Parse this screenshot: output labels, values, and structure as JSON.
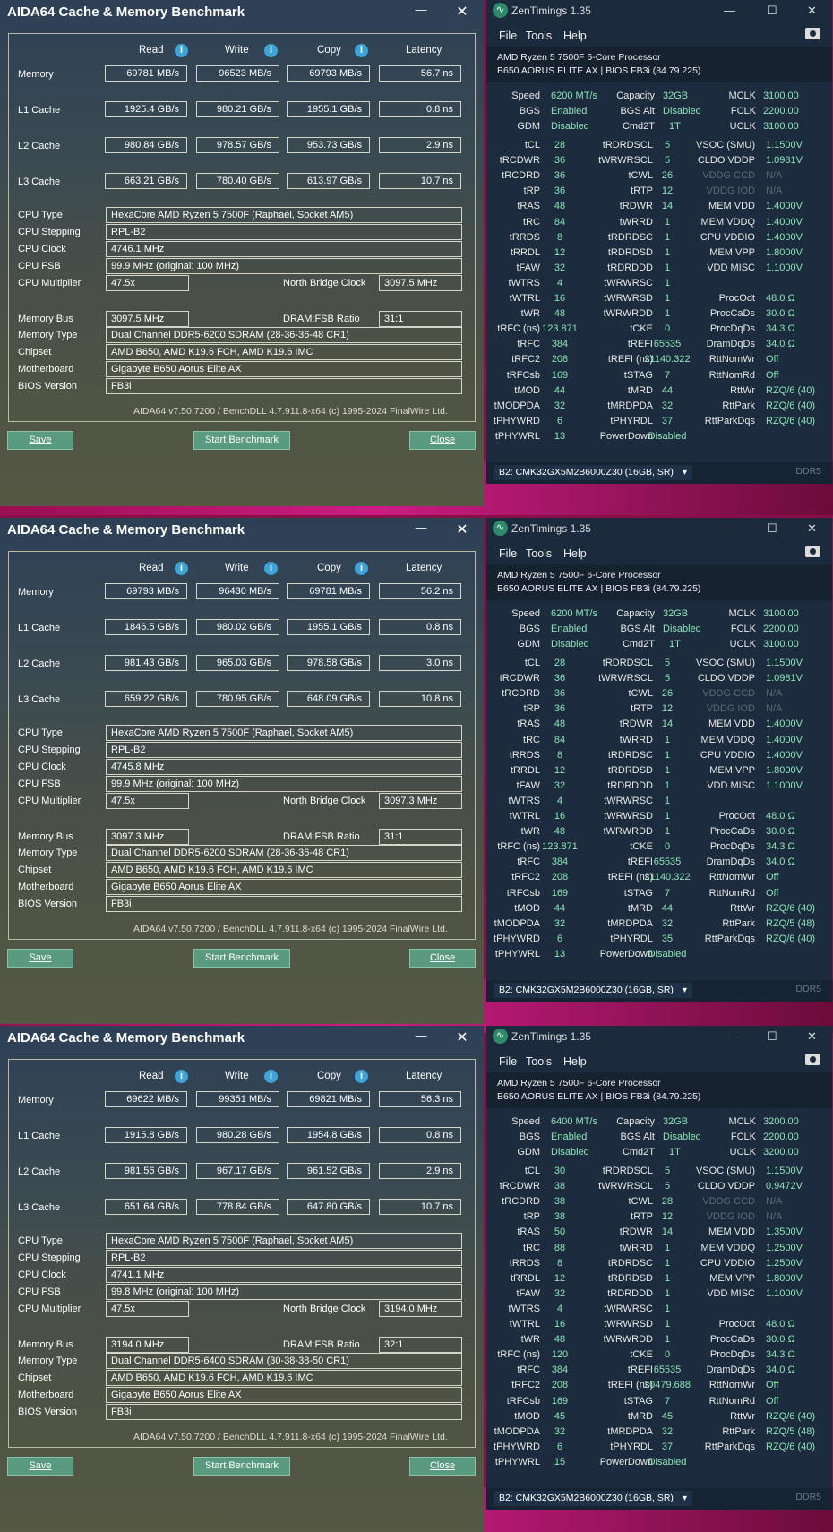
{
  "aida_title": "AIDA64 Cache & Memory Benchmark",
  "headers": {
    "read": "Read",
    "write": "Write",
    "copy": "Copy",
    "latency": "Latency"
  },
  "row_labels": {
    "memory": "Memory",
    "l1": "L1 Cache",
    "l2": "L2 Cache",
    "l3": "L3 Cache",
    "cpu_type": "CPU Type",
    "cpu_stepping": "CPU Stepping",
    "cpu_clock": "CPU Clock",
    "cpu_fsb": "CPU FSB",
    "cpu_multiplier": "CPU Multiplier",
    "nb_clock": "North Bridge Clock",
    "memory_bus": "Memory Bus",
    "dram_fsb": "DRAM:FSB Ratio",
    "memory_type": "Memory Type",
    "chipset": "Chipset",
    "motherboard": "Motherboard",
    "bios_version": "BIOS Version"
  },
  "footer": "AIDA64 v7.50.7200 / BenchDLL 4.7.911.8-x64  (c) 1995-2024 FinalWire Ltd.",
  "buttons": {
    "save": "Save",
    "start": "Start Benchmark",
    "close": "Close"
  },
  "zen_title": "ZenTimings 1.35",
  "zen_menu": {
    "file": "File",
    "tools": "Tools",
    "help": "Help"
  },
  "zen_cpu": "AMD Ryzen 5 7500F 6-Core Processor",
  "zen_board": "B650 AORUS ELITE AX | BIOS FB3i (84.79.225)",
  "zen_labels": {
    "speed": "Speed",
    "capacity": "Capacity",
    "mclk": "MCLK",
    "bgs": "BGS",
    "bgs_alt": "BGS Alt",
    "fclk": "FCLK",
    "gdm": "GDM",
    "cmd2t": "Cmd2T",
    "uclk": "UCLK",
    "c1": [
      "tCL",
      "tRCDWR",
      "tRCDRD",
      "tRP",
      "tRAS",
      "tRC",
      "tRRDS",
      "tRRDL",
      "tFAW",
      "tWTRS",
      "tWTRL",
      "tWR",
      "tRFC (ns)",
      "tRFC",
      "tRFC2",
      "tRFCsb",
      "tMOD",
      "tMODPDA",
      "tPHYWRD",
      "tPHYWRL"
    ],
    "c2": [
      "tRDRDSCL",
      "tWRWRSCL",
      "tCWL",
      "tRTP",
      "tRDWR",
      "tWRRD",
      "tRDRDSC",
      "tRDRDSD",
      "tRDRDDD",
      "tWRWRSC",
      "tWRWRSD",
      "tWRWRDD",
      "tCKE",
      "tREFI",
      "tREFI (ns)",
      "tSTAG",
      "tMRD",
      "tMRDPDA",
      "tPHYRDL",
      "PowerDown"
    ],
    "c3": [
      "VSOC (SMU)",
      "CLDO VDDP",
      "VDDG CCD",
      "VDDG IOD",
      "MEM VDD",
      "MEM VDDQ",
      "CPU VDDIO",
      "MEM VPP",
      "VDD MISC",
      "",
      "ProcOdt",
      "ProcCaDs",
      "ProcDqDs",
      "DramDqDs",
      "RttNomWr",
      "RttNomRd",
      "RttWr",
      "RttPark",
      "RttParkDqs"
    ]
  },
  "zen_dimm": "B2: CMK32GX5M2B6000Z30 (16GB, SR)",
  "zen_ddr": "DDR5",
  "instances": [
    {
      "memory": {
        "read": "69781 MB/s",
        "write": "96523 MB/s",
        "copy": "69793 MB/s",
        "latency": "56.7 ns"
      },
      "l1": {
        "read": "1925.4 GB/s",
        "write": "980.21 GB/s",
        "copy": "1955.1 GB/s",
        "latency": "0.8 ns"
      },
      "l2": {
        "read": "980.84 GB/s",
        "write": "978.57 GB/s",
        "copy": "953.73 GB/s",
        "latency": "2.9 ns"
      },
      "l3": {
        "read": "663.21 GB/s",
        "write": "780.40 GB/s",
        "copy": "613.97 GB/s",
        "latency": "10.7 ns"
      },
      "cpu_type": "HexaCore AMD Ryzen 5 7500F  (Raphael, Socket AM5)",
      "cpu_stepping": "RPL-B2",
      "cpu_clock": "4746.1 MHz",
      "cpu_fsb": "99.9 MHz  (original: 100 MHz)",
      "cpu_multiplier": "47.5x",
      "nb_clock": "3097.5 MHz",
      "memory_bus": "3097.5 MHz",
      "dram_fsb": "31:1",
      "memory_type": "Dual Channel DDR5-6200 SDRAM  (28-36-36-48 CR1)",
      "chipset": "AMD B650, AMD K19.6 FCH, AMD K19.6 IMC",
      "motherboard": "Gigabyte B650 Aorus Elite AX",
      "bios": "FB3i",
      "zen": {
        "speed": "6200 MT/s",
        "capacity": "32GB",
        "mclk": "3100.00",
        "bgs": "Enabled",
        "bgs_alt": "Disabled",
        "fclk": "2200.00",
        "gdm": "Disabled",
        "cmd2t": "1T",
        "uclk": "3100.00",
        "v1": [
          "28",
          "36",
          "36",
          "36",
          "48",
          "84",
          "8",
          "12",
          "32",
          "4",
          "16",
          "48",
          "123.871",
          "384",
          "208",
          "169",
          "44",
          "32",
          "6",
          "13"
        ],
        "v2": [
          "5",
          "5",
          "26",
          "12",
          "14",
          "1",
          "1",
          "1",
          "1",
          "1",
          "1",
          "1",
          "0",
          "65535",
          "21140.322",
          "7",
          "44",
          "32",
          "37",
          "Disabled"
        ],
        "v3": [
          "1.1500V",
          "1.0981V",
          "N/A",
          "N/A",
          "1.4000V",
          "1.4000V",
          "1.4000V",
          "1.8000V",
          "1.1000V",
          "",
          "48.0 Ω",
          "30.0 Ω",
          "34.3 Ω",
          "34.0 Ω",
          "Off",
          "Off",
          "RZQ/6 (40)",
          "RZQ/6 (40)",
          "RZQ/6 (40)"
        ]
      }
    },
    {
      "memory": {
        "read": "69793 MB/s",
        "write": "96430 MB/s",
        "copy": "69781 MB/s",
        "latency": "56.2 ns"
      },
      "l1": {
        "read": "1846.5 GB/s",
        "write": "980.02 GB/s",
        "copy": "1955.1 GB/s",
        "latency": "0.8 ns"
      },
      "l2": {
        "read": "981.43 GB/s",
        "write": "965.03 GB/s",
        "copy": "978.58 GB/s",
        "latency": "3.0 ns"
      },
      "l3": {
        "read": "659.22 GB/s",
        "write": "780.95 GB/s",
        "copy": "648.09 GB/s",
        "latency": "10.8 ns"
      },
      "cpu_type": "HexaCore AMD Ryzen 5 7500F  (Raphael, Socket AM5)",
      "cpu_stepping": "RPL-B2",
      "cpu_clock": "4745.8 MHz",
      "cpu_fsb": "99.9 MHz  (original: 100 MHz)",
      "cpu_multiplier": "47.5x",
      "nb_clock": "3097.3 MHz",
      "memory_bus": "3097.3 MHz",
      "dram_fsb": "31:1",
      "memory_type": "Dual Channel DDR5-6200 SDRAM  (28-36-36-48 CR1)",
      "chipset": "AMD B650, AMD K19.6 FCH, AMD K19.6 IMC",
      "motherboard": "Gigabyte B650 Aorus Elite AX",
      "bios": "FB3i",
      "zen": {
        "speed": "6200 MT/s",
        "capacity": "32GB",
        "mclk": "3100.00",
        "bgs": "Enabled",
        "bgs_alt": "Disabled",
        "fclk": "2200.00",
        "gdm": "Disabled",
        "cmd2t": "1T",
        "uclk": "3100.00",
        "v1": [
          "28",
          "36",
          "36",
          "36",
          "48",
          "84",
          "8",
          "12",
          "32",
          "4",
          "16",
          "48",
          "123.871",
          "384",
          "208",
          "169",
          "44",
          "32",
          "6",
          "13"
        ],
        "v2": [
          "5",
          "5",
          "26",
          "12",
          "14",
          "1",
          "1",
          "1",
          "1",
          "1",
          "1",
          "1",
          "0",
          "65535",
          "21140.322",
          "7",
          "44",
          "32",
          "35",
          "Disabled"
        ],
        "v3": [
          "1.1500V",
          "1.0981V",
          "N/A",
          "N/A",
          "1.4000V",
          "1.4000V",
          "1.4000V",
          "1.8000V",
          "1.1000V",
          "",
          "48.0 Ω",
          "30.0 Ω",
          "34.3 Ω",
          "34.0 Ω",
          "Off",
          "Off",
          "RZQ/6 (40)",
          "RZQ/5 (48)",
          "RZQ/6 (40)"
        ]
      }
    },
    {
      "memory": {
        "read": "69622 MB/s",
        "write": "99351 MB/s",
        "copy": "69821 MB/s",
        "latency": "56.3 ns"
      },
      "l1": {
        "read": "1915.8 GB/s",
        "write": "980.28 GB/s",
        "copy": "1954.8 GB/s",
        "latency": "0.8 ns"
      },
      "l2": {
        "read": "981.56 GB/s",
        "write": "967.17 GB/s",
        "copy": "961.52 GB/s",
        "latency": "2.9 ns"
      },
      "l3": {
        "read": "651.64 GB/s",
        "write": "778.84 GB/s",
        "copy": "647.80 GB/s",
        "latency": "10.7 ns"
      },
      "cpu_type": "HexaCore AMD Ryzen 5 7500F  (Raphael, Socket AM5)",
      "cpu_stepping": "RPL-B2",
      "cpu_clock": "4741.1 MHz",
      "cpu_fsb": "99.8 MHz  (original: 100 MHz)",
      "cpu_multiplier": "47.5x",
      "nb_clock": "3194.0 MHz",
      "memory_bus": "3194.0 MHz",
      "dram_fsb": "32:1",
      "memory_type": "Dual Channel DDR5-6400 SDRAM  (30-38-38-50 CR1)",
      "chipset": "AMD B650, AMD K19.6 FCH, AMD K19.6 IMC",
      "motherboard": "Gigabyte B650 Aorus Elite AX",
      "bios": "FB3i",
      "zen": {
        "speed": "6400 MT/s",
        "capacity": "32GB",
        "mclk": "3200.00",
        "bgs": "Enabled",
        "bgs_alt": "Disabled",
        "fclk": "2200.00",
        "gdm": "Disabled",
        "cmd2t": "1T",
        "uclk": "3200.00",
        "v1": [
          "30",
          "38",
          "38",
          "38",
          "50",
          "88",
          "8",
          "12",
          "32",
          "4",
          "16",
          "48",
          "120",
          "384",
          "208",
          "169",
          "45",
          "32",
          "6",
          "15"
        ],
        "v2": [
          "5",
          "5",
          "28",
          "12",
          "14",
          "1",
          "1",
          "1",
          "1",
          "1",
          "1",
          "1",
          "0",
          "65535",
          "20479.688",
          "7",
          "45",
          "32",
          "37",
          "Disabled"
        ],
        "v3": [
          "1.1500V",
          "0.9472V",
          "N/A",
          "N/A",
          "1.3500V",
          "1.2500V",
          "1.2500V",
          "1.8000V",
          "1.1000V",
          "",
          "48.0 Ω",
          "30.0 Ω",
          "34.3 Ω",
          "34.0 Ω",
          "Off",
          "Off",
          "RZQ/6 (40)",
          "RZQ/5 (48)",
          "RZQ/6 (40)"
        ]
      }
    }
  ]
}
